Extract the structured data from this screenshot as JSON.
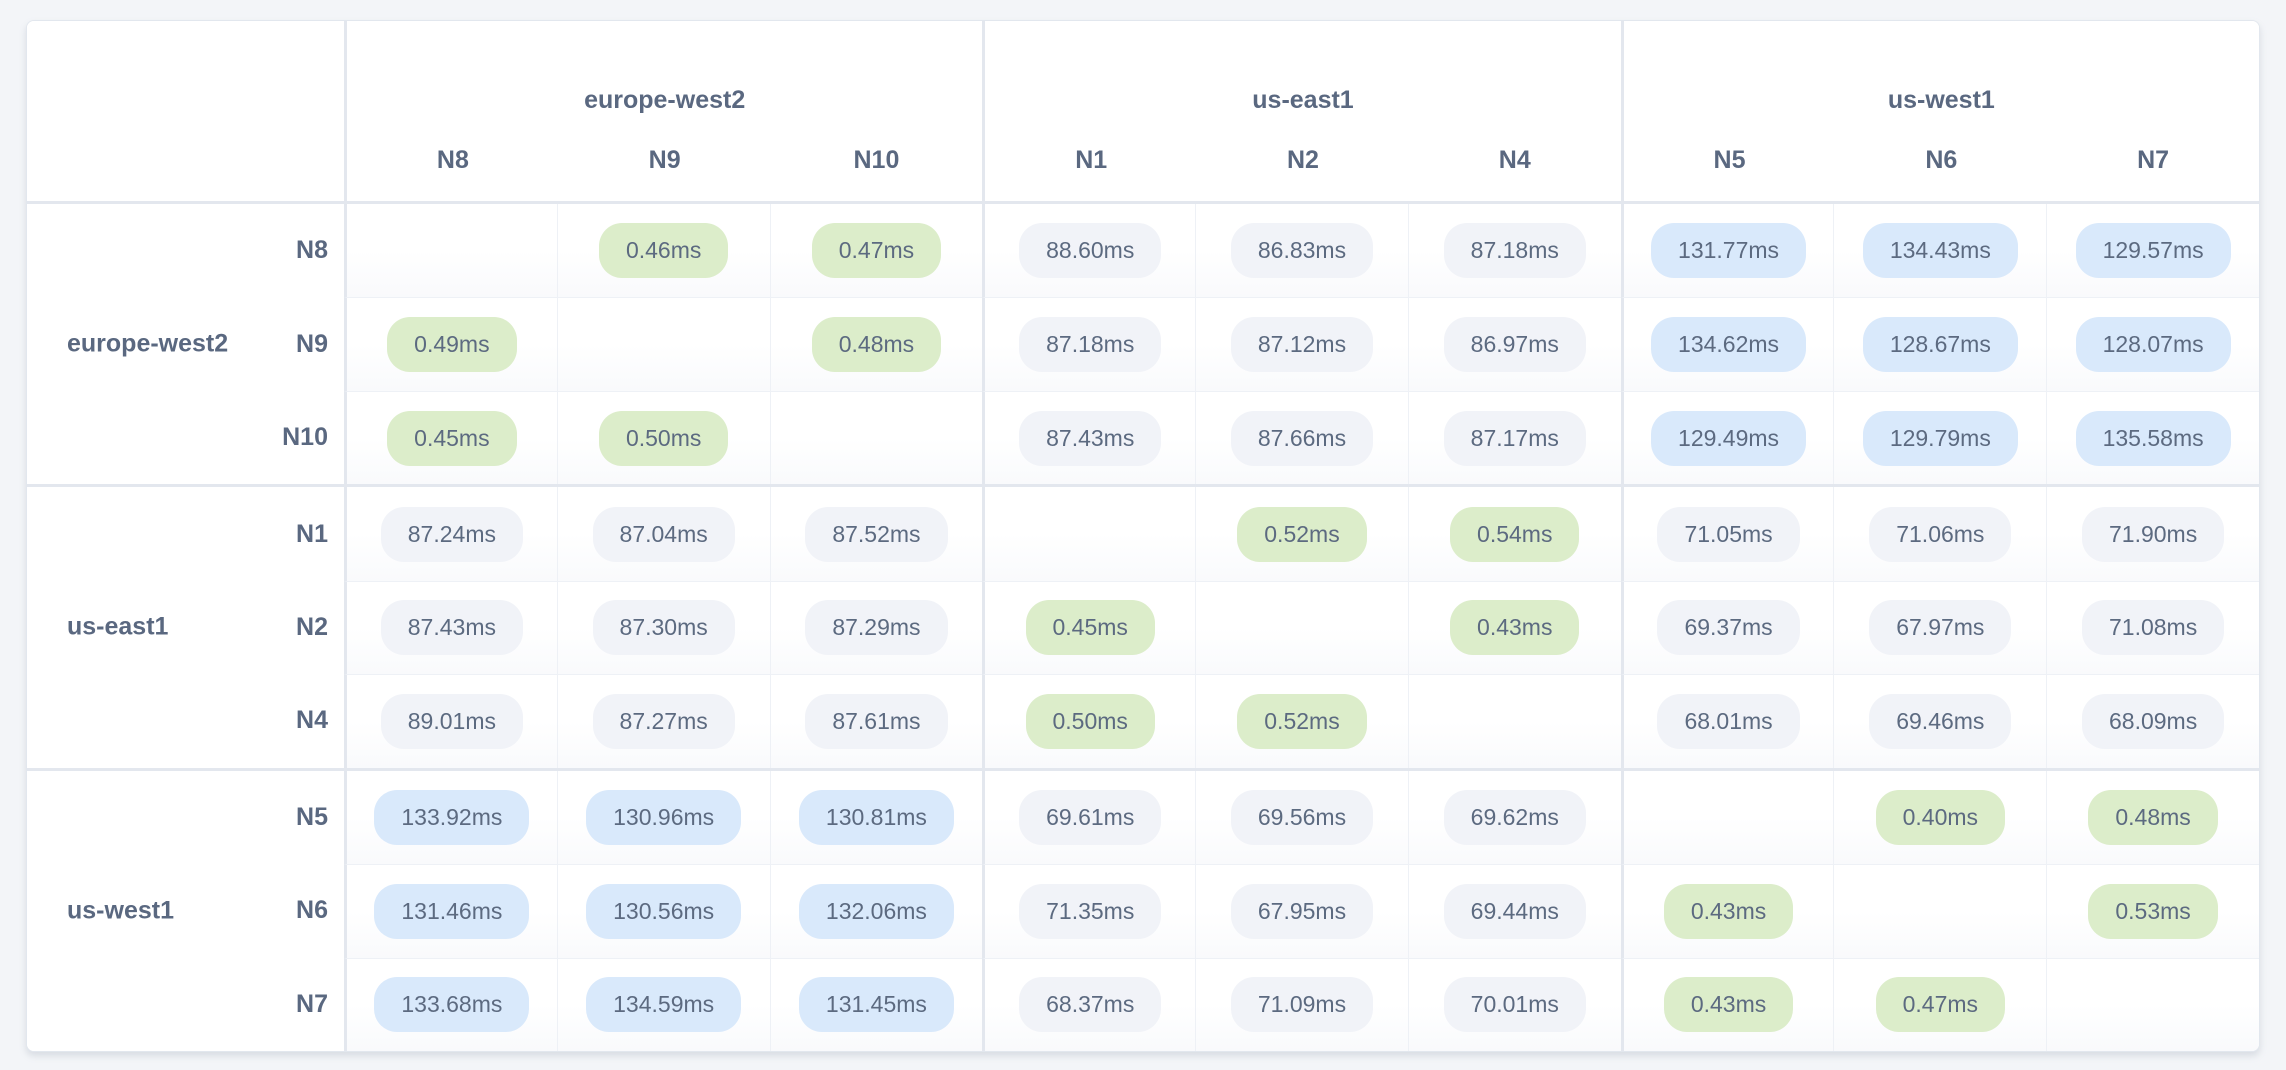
{
  "colors": {
    "page_bg": "#f3f5f8",
    "table_bg": "#ffffff",
    "table_border": "#e2e7ee",
    "group_border": "#e3e7ee",
    "cell_border": "#eef1f6",
    "text": "#5c6a80",
    "heading": "#5a6880",
    "badge_green": "#dcedca",
    "badge_blue": "#d9e9fb",
    "badge_gray": "#f1f3f8"
  },
  "matrix": {
    "unit": "ms",
    "column_groups": [
      {
        "region": "europe-west2",
        "nodes": [
          "N8",
          "N9",
          "N10"
        ]
      },
      {
        "region": "us-east1",
        "nodes": [
          "N1",
          "N2",
          "N4"
        ]
      },
      {
        "region": "us-west1",
        "nodes": [
          "N5",
          "N6",
          "N7"
        ]
      }
    ],
    "row_groups": [
      {
        "region": "europe-west2",
        "rows": [
          {
            "node": "N8",
            "cells": [
              null,
              {
                "value": "0.46ms",
                "tone": "green"
              },
              {
                "value": "0.47ms",
                "tone": "green"
              },
              {
                "value": "88.60ms",
                "tone": "gray"
              },
              {
                "value": "86.83ms",
                "tone": "gray"
              },
              {
                "value": "87.18ms",
                "tone": "gray"
              },
              {
                "value": "131.77ms",
                "tone": "blue"
              },
              {
                "value": "134.43ms",
                "tone": "blue"
              },
              {
                "value": "129.57ms",
                "tone": "blue"
              }
            ]
          },
          {
            "node": "N9",
            "cells": [
              {
                "value": "0.49ms",
                "tone": "green"
              },
              null,
              {
                "value": "0.48ms",
                "tone": "green"
              },
              {
                "value": "87.18ms",
                "tone": "gray"
              },
              {
                "value": "87.12ms",
                "tone": "gray"
              },
              {
                "value": "86.97ms",
                "tone": "gray"
              },
              {
                "value": "134.62ms",
                "tone": "blue"
              },
              {
                "value": "128.67ms",
                "tone": "blue"
              },
              {
                "value": "128.07ms",
                "tone": "blue"
              }
            ]
          },
          {
            "node": "N10",
            "cells": [
              {
                "value": "0.45ms",
                "tone": "green"
              },
              {
                "value": "0.50ms",
                "tone": "green"
              },
              null,
              {
                "value": "87.43ms",
                "tone": "gray"
              },
              {
                "value": "87.66ms",
                "tone": "gray"
              },
              {
                "value": "87.17ms",
                "tone": "gray"
              },
              {
                "value": "129.49ms",
                "tone": "blue"
              },
              {
                "value": "129.79ms",
                "tone": "blue"
              },
              {
                "value": "135.58ms",
                "tone": "blue"
              }
            ]
          }
        ]
      },
      {
        "region": "us-east1",
        "rows": [
          {
            "node": "N1",
            "cells": [
              {
                "value": "87.24ms",
                "tone": "gray"
              },
              {
                "value": "87.04ms",
                "tone": "gray"
              },
              {
                "value": "87.52ms",
                "tone": "gray"
              },
              null,
              {
                "value": "0.52ms",
                "tone": "green"
              },
              {
                "value": "0.54ms",
                "tone": "green"
              },
              {
                "value": "71.05ms",
                "tone": "gray"
              },
              {
                "value": "71.06ms",
                "tone": "gray"
              },
              {
                "value": "71.90ms",
                "tone": "gray"
              }
            ]
          },
          {
            "node": "N2",
            "cells": [
              {
                "value": "87.43ms",
                "tone": "gray"
              },
              {
                "value": "87.30ms",
                "tone": "gray"
              },
              {
                "value": "87.29ms",
                "tone": "gray"
              },
              {
                "value": "0.45ms",
                "tone": "green"
              },
              null,
              {
                "value": "0.43ms",
                "tone": "green"
              },
              {
                "value": "69.37ms",
                "tone": "gray"
              },
              {
                "value": "67.97ms",
                "tone": "gray"
              },
              {
                "value": "71.08ms",
                "tone": "gray"
              }
            ]
          },
          {
            "node": "N4",
            "cells": [
              {
                "value": "89.01ms",
                "tone": "gray"
              },
              {
                "value": "87.27ms",
                "tone": "gray"
              },
              {
                "value": "87.61ms",
                "tone": "gray"
              },
              {
                "value": "0.50ms",
                "tone": "green"
              },
              {
                "value": "0.52ms",
                "tone": "green"
              },
              null,
              {
                "value": "68.01ms",
                "tone": "gray"
              },
              {
                "value": "69.46ms",
                "tone": "gray"
              },
              {
                "value": "68.09ms",
                "tone": "gray"
              }
            ]
          }
        ]
      },
      {
        "region": "us-west1",
        "rows": [
          {
            "node": "N5",
            "cells": [
              {
                "value": "133.92ms",
                "tone": "blue"
              },
              {
                "value": "130.96ms",
                "tone": "blue"
              },
              {
                "value": "130.81ms",
                "tone": "blue"
              },
              {
                "value": "69.61ms",
                "tone": "gray"
              },
              {
                "value": "69.56ms",
                "tone": "gray"
              },
              {
                "value": "69.62ms",
                "tone": "gray"
              },
              null,
              {
                "value": "0.40ms",
                "tone": "green"
              },
              {
                "value": "0.48ms",
                "tone": "green"
              }
            ]
          },
          {
            "node": "N6",
            "cells": [
              {
                "value": "131.46ms",
                "tone": "blue"
              },
              {
                "value": "130.56ms",
                "tone": "blue"
              },
              {
                "value": "132.06ms",
                "tone": "blue"
              },
              {
                "value": "71.35ms",
                "tone": "gray"
              },
              {
                "value": "67.95ms",
                "tone": "gray"
              },
              {
                "value": "69.44ms",
                "tone": "gray"
              },
              {
                "value": "0.43ms",
                "tone": "green"
              },
              null,
              {
                "value": "0.53ms",
                "tone": "green"
              }
            ]
          },
          {
            "node": "N7",
            "cells": [
              {
                "value": "133.68ms",
                "tone": "blue"
              },
              {
                "value": "134.59ms",
                "tone": "blue"
              },
              {
                "value": "131.45ms",
                "tone": "blue"
              },
              {
                "value": "68.37ms",
                "tone": "gray"
              },
              {
                "value": "71.09ms",
                "tone": "gray"
              },
              {
                "value": "70.01ms",
                "tone": "gray"
              },
              {
                "value": "0.43ms",
                "tone": "green"
              },
              {
                "value": "0.47ms",
                "tone": "green"
              },
              null
            ]
          }
        ]
      }
    ]
  }
}
